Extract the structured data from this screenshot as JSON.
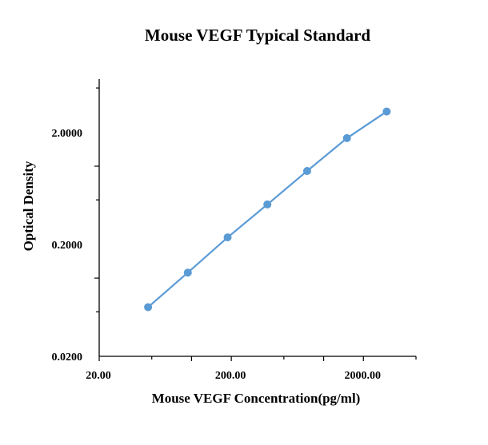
{
  "chart_data": {
    "type": "line",
    "title": "Mouse VEGF Typical Standard",
    "xlabel": "Mouse VEGF Concentration(pg/ml)",
    "ylabel": "Optical Density",
    "x_scale": "log",
    "y_scale": "log",
    "xlim": [
      20,
      5000
    ],
    "ylim": [
      0.02,
      6
    ],
    "x_ticks": [
      20,
      200,
      2000
    ],
    "x_tick_labels": [
      "20.00",
      "200.00",
      "2000.00"
    ],
    "y_ticks": [
      0.02,
      0.2,
      2
    ],
    "y_tick_labels": [
      "0.0200",
      "0.2000",
      "2.0000"
    ],
    "grid": false,
    "legend": "none",
    "series": [
      {
        "color": "#5b9bd5",
        "x": [
          46.875,
          93.75,
          187.5,
          375,
          750,
          1500,
          3000
        ],
        "y": [
          0.055,
          0.112,
          0.231,
          0.455,
          0.906,
          1.78,
          3.08
        ]
      }
    ]
  }
}
